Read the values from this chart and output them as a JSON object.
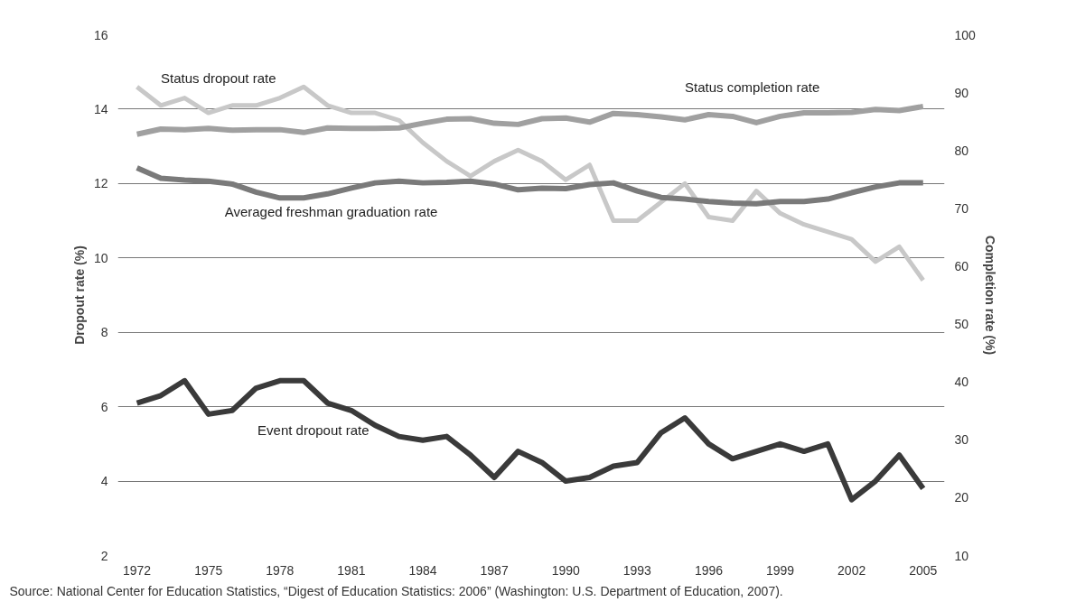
{
  "chart_data": {
    "type": "line",
    "ylabel": "Dropout rate (%)",
    "y2label": "Completion rate (%)",
    "x": [
      1972,
      1973,
      1974,
      1975,
      1976,
      1977,
      1978,
      1979,
      1980,
      1981,
      1982,
      1983,
      1984,
      1985,
      1986,
      1987,
      1988,
      1989,
      1990,
      1991,
      1992,
      1993,
      1994,
      1995,
      1996,
      1997,
      1998,
      1999,
      2000,
      2001,
      2002,
      2003,
      2004,
      2005
    ],
    "xlim": [
      1971.2,
      2005.9
    ],
    "xticks": [
      1972,
      1975,
      1978,
      1981,
      1984,
      1987,
      1990,
      1993,
      1996,
      1999,
      2002,
      2005
    ],
    "ylim": [
      2,
      16
    ],
    "yticks": [
      2,
      4,
      6,
      8,
      10,
      12,
      14,
      16
    ],
    "y2lim": [
      10,
      100
    ],
    "y2ticks": [
      10,
      20,
      30,
      40,
      50,
      60,
      70,
      80,
      90,
      100
    ],
    "grid": "y",
    "line_style": "solid",
    "marker": "none",
    "series": [
      {
        "name": "Status dropout rate",
        "color": "#c8c8c8",
        "values": [
          14.6,
          14.1,
          14.3,
          13.9,
          14.1,
          14.1,
          14.3,
          14.6,
          14.1,
          13.9,
          13.9,
          13.7,
          13.1,
          12.6,
          12.2,
          12.6,
          12.9,
          12.6,
          12.1,
          12.5,
          11.0,
          11.0,
          11.5,
          12.0,
          11.1,
          11.0,
          11.8,
          11.2,
          10.9,
          10.7,
          10.5,
          9.9,
          10.3,
          9.4
        ]
      },
      {
        "name": "Status completion rate",
        "color": "#a0a0a0",
        "axis": "y2",
        "values": [
          82.8,
          83.7,
          83.6,
          83.8,
          83.5,
          83.6,
          83.6,
          83.1,
          83.9,
          83.8,
          83.8,
          83.9,
          84.7,
          85.4,
          85.5,
          84.7,
          84.5,
          85.5,
          85.6,
          84.9,
          86.4,
          86.2,
          85.8,
          85.3,
          86.2,
          85.9,
          84.8,
          85.9,
          86.5,
          86.5,
          86.6,
          87.1,
          86.9,
          87.6
        ]
      },
      {
        "name": "Averaged freshman graduation rate",
        "color": "#7a7a7a",
        "axis": "y2",
        "values": [
          77.0,
          75.2,
          74.9,
          74.7,
          74.2,
          72.8,
          71.8,
          71.8,
          72.5,
          73.5,
          74.4,
          74.7,
          74.4,
          74.5,
          74.7,
          74.2,
          73.2,
          73.5,
          73.4,
          74.1,
          74.4,
          73.0,
          71.9,
          71.6,
          71.2,
          70.9,
          70.8,
          71.2,
          71.2,
          71.6,
          72.7,
          73.7,
          74.4,
          74.4
        ]
      },
      {
        "name": "Event dropout rate",
        "color": "#3a3a3a",
        "values": [
          6.1,
          6.3,
          6.7,
          5.8,
          5.9,
          6.5,
          6.7,
          6.7,
          6.1,
          5.9,
          5.5,
          5.2,
          5.1,
          5.2,
          4.7,
          4.1,
          4.8,
          4.5,
          4.0,
          4.1,
          4.4,
          4.5,
          5.3,
          5.7,
          5.0,
          4.6,
          4.8,
          5.0,
          4.8,
          5.0,
          3.5,
          4.0,
          4.7,
          3.8
        ]
      }
    ],
    "annotations": [
      "Source: National Center for Education Statistics, “Digest of Education Statistics: 2006” (Washington: U.S. Department of Education, 2007)."
    ]
  }
}
